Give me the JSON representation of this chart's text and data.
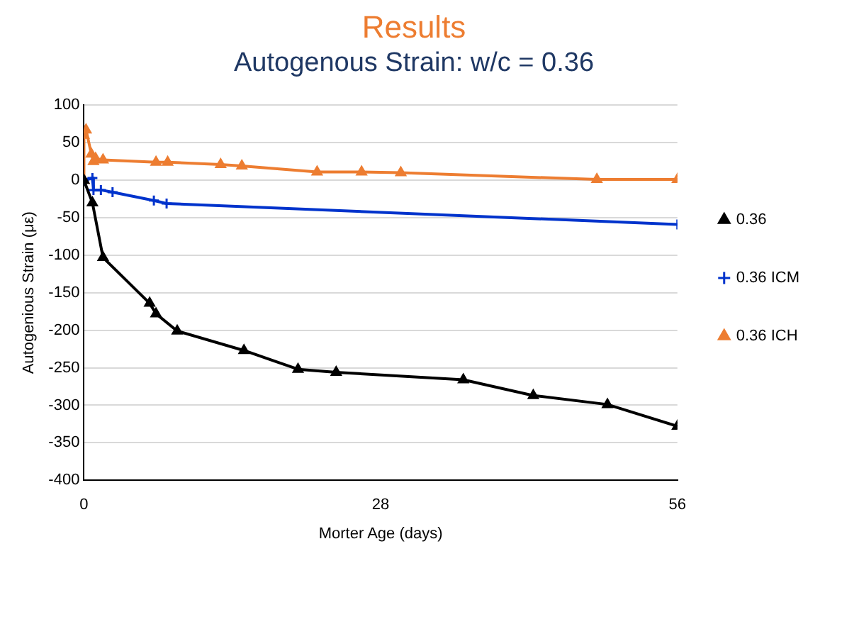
{
  "chart_data": {
    "type": "line",
    "title": "Results",
    "subtitle": "Autogenous Strain: w/c = 0.36",
    "xlabel": "Morter Age (days)",
    "ylabel": "Autogenious Strain (με)",
    "xlim": [
      0,
      56
    ],
    "xticks": [
      0,
      28,
      56
    ],
    "ylim": [
      -400,
      100
    ],
    "yticks": [
      100,
      50,
      0,
      -50,
      -100,
      -150,
      -200,
      -250,
      -300,
      -350,
      -400
    ],
    "grid": "y",
    "legend": "right",
    "line_style": "solid",
    "series": [
      {
        "name": "0.36",
        "color": "#000000",
        "marker": "triangle",
        "x": [
          0,
          0.8,
          1.8,
          6.2,
          6.8,
          8.8,
          15.1,
          20.2,
          23.8,
          35.8,
          42.4,
          49.4,
          56
        ],
        "values": [
          0,
          -30,
          -103,
          -164,
          -178,
          -201,
          -227,
          -252,
          -256,
          -266,
          -287,
          -299,
          -328
        ]
      },
      {
        "name": "0.36 ICM",
        "color": "#0033cc",
        "marker": "cross",
        "x": [
          0,
          0.8,
          0.9,
          1.6,
          2.7,
          6.6,
          7.8,
          56
        ],
        "values": [
          0,
          3,
          -13,
          -13,
          -16,
          -27,
          -31,
          -59
        ]
      },
      {
        "name": "0.36 ICH",
        "color": "#ed7d31",
        "marker": "triangle",
        "x": [
          0,
          0,
          0.2,
          0.7,
          0.9,
          1.1,
          1.8,
          6.8,
          7.9,
          12.9,
          14.9,
          22,
          26.2,
          29.9,
          48.4,
          56
        ],
        "values": [
          0,
          60,
          67,
          35,
          25,
          29,
          27,
          24,
          24,
          21,
          19,
          11,
          11,
          10,
          1,
          1
        ]
      }
    ]
  }
}
